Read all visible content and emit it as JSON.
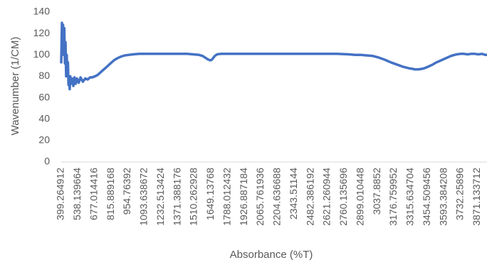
{
  "chart_data": {
    "type": "line",
    "xlabel": "Absorbance (%T)",
    "ylabel": "Wavenumber (1/CM)",
    "ylim": [
      0,
      140
    ],
    "y_ticks": [
      "0",
      "20",
      "40",
      "60",
      "80",
      "100",
      "120",
      "140"
    ],
    "x_range": [
      399.264912,
      3952.0
    ],
    "x_tick_labels": [
      "399.264912",
      "538.139664",
      "677.014416",
      "815.889168",
      "954.76392",
      "1093.638672",
      "1232.513424",
      "1371.388176",
      "1510.262928",
      "1649.13768",
      "1788.012432",
      "1926.887184",
      "2065.761936",
      "2204.636688",
      "2343.51144",
      "2482.386192",
      "2621.260944",
      "2760.135696",
      "2899.010448",
      "3037.8852",
      "3176.759952",
      "3315.634704",
      "3454.509456",
      "3593.384208",
      "3732.25896",
      "3871.133712"
    ],
    "grid": false,
    "legend": "none",
    "line_color": "#4472C4",
    "series": [
      {
        "x": [
          399.3,
          405,
          410,
          415,
          420,
          425,
          430,
          435,
          440,
          445,
          450,
          455,
          460,
          465,
          470,
          475,
          480,
          490,
          500,
          510,
          520,
          530,
          545,
          560,
          580,
          600,
          620,
          640,
          660,
          680,
          700,
          720,
          750,
          780,
          810,
          840,
          870,
          900,
          930,
          960,
          1000,
          1050,
          1100,
          1150,
          1200,
          1250,
          1300,
          1350,
          1400,
          1450,
          1500,
          1550,
          1580,
          1600,
          1620,
          1640,
          1649,
          1660,
          1680,
          1700,
          1730,
          1760,
          1800,
          1850,
          1900,
          1950,
          2000,
          2100,
          2200,
          2300,
          2400,
          2500,
          2600,
          2700,
          2800,
          2850,
          2900,
          2950,
          3000,
          3050,
          3100,
          3150,
          3200,
          3250,
          3300,
          3330,
          3350,
          3380,
          3410,
          3440,
          3470,
          3500,
          3530,
          3560,
          3590,
          3620,
          3650,
          3680,
          3700,
          3730,
          3760,
          3790,
          3820,
          3850,
          3880,
          3910,
          3940,
          3952
        ],
        "y": [
          93,
          130,
          118,
          128,
          100,
          125,
          92,
          112,
          80,
          100,
          85,
          93,
          72,
          78,
          68,
          80,
          73,
          78,
          71,
          79,
          73,
          78,
          74,
          79,
          75,
          78,
          77,
          79,
          79,
          80,
          81,
          83,
          86,
          89,
          92,
          95,
          97,
          98.5,
          99.5,
          100,
          100.5,
          101,
          101,
          101,
          101,
          101,
          101,
          101,
          101,
          101,
          100.5,
          100,
          99,
          97.5,
          96,
          95,
          95,
          96,
          99,
          100.5,
          101,
          101,
          101,
          101,
          101,
          101,
          101,
          101,
          101,
          101,
          101,
          101,
          101,
          101,
          100.5,
          100,
          100,
          99.5,
          99,
          97.5,
          95.5,
          93,
          91,
          89,
          87.5,
          87,
          86.5,
          86.5,
          87,
          88,
          89.5,
          91,
          93,
          94.5,
          96,
          97.5,
          99,
          100,
          100.5,
          101,
          101,
          100.5,
          101,
          101,
          100.5,
          101,
          100,
          100
        ]
      }
    ]
  }
}
